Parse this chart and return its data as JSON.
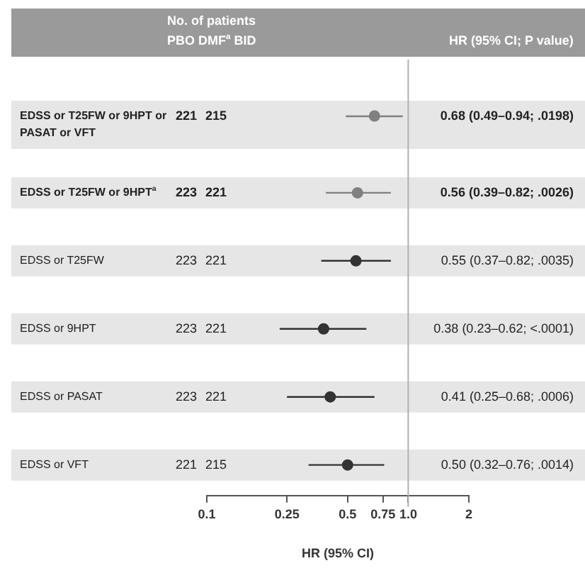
{
  "chart_data": {
    "type": "scatter",
    "orientation": "horizontal",
    "xlabel": "HR (95% CI)",
    "categories": [
      "EDSS or T25FW or 9HPT or PASAT or VFT",
      "EDSS or T25FW or 9HPT$^{a}$",
      "EDSS or T25FW",
      "EDSS or 9HPT",
      "EDSS or PASAT",
      "EDSS or VFT"
    ],
    "values": [
      0.68,
      0.56,
      0.55,
      0.38,
      0.41,
      0.5
    ],
    "errors": [
      [
        0.49,
        0.94
      ],
      [
        0.39,
        0.82
      ],
      [
        0.37,
        0.82
      ],
      [
        0.23,
        0.62
      ],
      [
        0.25,
        0.68
      ],
      [
        0.32,
        0.76
      ]
    ],
    "colors": [
      "#808080",
      "#808080",
      "#333333",
      "#333333",
      "#333333",
      "#333333"
    ],
    "value_labels": [
      "0.68 (0.49–0.94; .0198)",
      "0.56 (0.39–0.82; .0026)",
      "0.55 (0.37–0.82; .0035)",
      "0.38 (0.23–0.62; <.0001)",
      "0.41 (0.25–0.68; .0006)",
      "0.50 (0.32–0.76; .0014)"
    ],
    "annotations": [
      "No. of patients",
      "PBO DMF$^{a}$ BID",
      "HR (95% CI; P value)",
      "221",
      "215",
      "223",
      "221",
      "223",
      "221",
      "223",
      "221",
      "223",
      "221",
      "221",
      "215"
    ],
    "log": "x",
    "xlim": [
      0.1,
      2
    ],
    "xticks": [
      0.1,
      0.25,
      0.5,
      0.75,
      {
        "value": 1,
        "label": "1.0"
      },
      2
    ],
    "ref_lines": [
      {
        "axis": "x",
        "value": 1,
        "color": "#b0b0b0"
      }
    ],
    "marker": "circle",
    "grid": false,
    "legend": false
  }
}
